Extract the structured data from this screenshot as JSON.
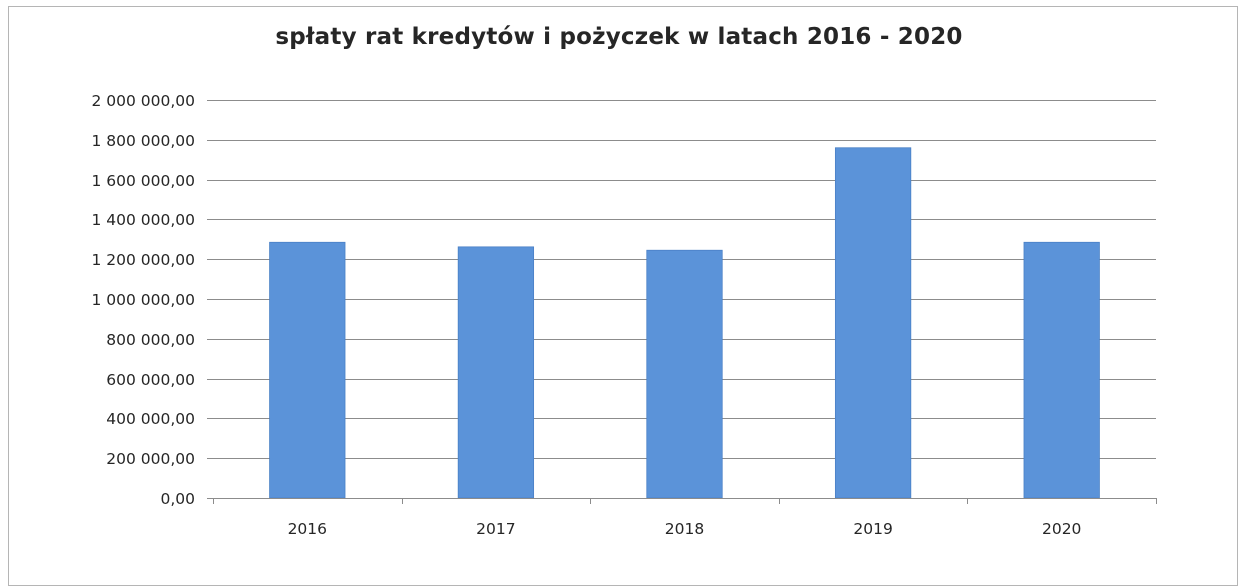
{
  "chart_data": {
    "type": "bar",
    "title": "spłaty rat kredytów i pożyczek w latach 2016 - 2020",
    "xlabel": "",
    "ylabel": "",
    "categories": [
      "2016",
      "2017",
      "2018",
      "2019",
      "2020"
    ],
    "values": [
      1285000,
      1262000,
      1245000,
      1760000,
      1285000
    ],
    "ylim": [
      0,
      2000000
    ],
    "yticks": [
      0,
      200000,
      400000,
      600000,
      800000,
      1000000,
      1200000,
      1400000,
      1600000,
      1800000,
      2000000
    ],
    "ytick_labels": [
      "0,00",
      "200 000,00",
      "400 000,00",
      "600 000,00",
      "800 000,00",
      "1 000 000,00",
      "1 200 000,00",
      "1 400 000,00",
      "1 600 000,00",
      "1 800 000,00",
      "2 000 000,00"
    ],
    "grid": true,
    "legend": "none",
    "colors": {
      "bar": "#5b93d9",
      "bar_edge": "#4a80c6",
      "grid": "#8c8c8c",
      "axis": "#8c8c8c",
      "text": "#262626"
    }
  }
}
